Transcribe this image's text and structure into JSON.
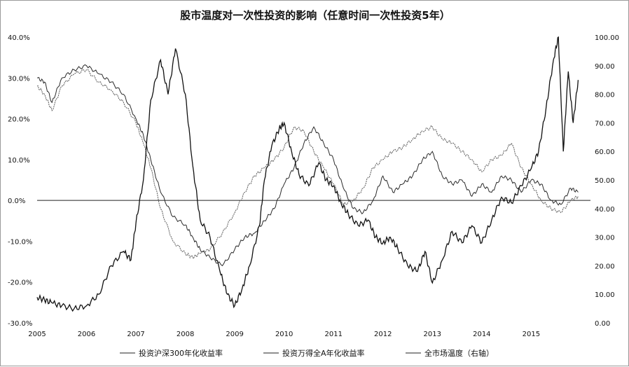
{
  "chart_data": {
    "type": "line",
    "title": "股市温度对一次性投资的影响（任意时间一次性投资5年）",
    "x_ticks": [
      "2005",
      "2006",
      "2007",
      "2008",
      "2009",
      "2010",
      "2011",
      "2012",
      "2013",
      "2014",
      "2015"
    ],
    "left_ticks": [
      "40.0%",
      "30.0%",
      "20.0%",
      "10.0%",
      "0.0%",
      "-10.0%",
      "-20.0%",
      "-30.0%"
    ],
    "right_ticks": [
      "100.00",
      "90.00",
      "80.00",
      "70.00",
      "60.00",
      "50.00",
      "40.00",
      "30.00",
      "20.00",
      "10.00",
      "0.00"
    ],
    "left_ylim": [
      -30,
      40
    ],
    "right_ylim": [
      0,
      100
    ],
    "xlim": [
      2005.0,
      2016.2
    ],
    "grid": false,
    "legend_position": "bottom",
    "series": [
      {
        "name": "投资沪深300年化收益率",
        "axis": "left",
        "color": "#2a2a2a",
        "x": [
          2005.0,
          2005.15,
          2005.3,
          2005.5,
          2005.75,
          2006.0,
          2006.25,
          2006.5,
          2006.75,
          2007.0,
          2007.15,
          2007.3,
          2007.5,
          2007.75,
          2008.0,
          2008.15,
          2008.3,
          2008.5,
          2008.75,
          2009.0,
          2009.2,
          2009.4,
          2009.6,
          2009.8,
          2010.0,
          2010.2,
          2010.4,
          2010.6,
          2010.8,
          2011.0,
          2011.2,
          2011.4,
          2011.6,
          2011.8,
          2012.0,
          2012.2,
          2012.4,
          2012.6,
          2012.8,
          2013.0,
          2013.2,
          2013.4,
          2013.6,
          2013.8,
          2014.0,
          2014.2,
          2014.4,
          2014.6,
          2014.8,
          2015.0,
          2015.2,
          2015.4,
          2015.6,
          2015.8,
          2015.95
        ],
        "y": [
          30,
          29,
          24,
          30,
          32,
          33,
          31,
          29,
          26,
          20,
          16,
          10,
          2,
          -4,
          -6,
          -9,
          -12,
          -14,
          -16,
          -12,
          -9,
          -8,
          -5,
          -2,
          4,
          8,
          14,
          18,
          14,
          10,
          3,
          -2,
          -3,
          0,
          6,
          2,
          4,
          6,
          10,
          12,
          6,
          4,
          5,
          1,
          4,
          2,
          6,
          5,
          2,
          5,
          4,
          0,
          -1,
          3,
          2
        ]
      },
      {
        "name": "投资万得全A年化收益率",
        "axis": "left",
        "color": "#5a5a5a",
        "x": [
          2005.0,
          2005.15,
          2005.3,
          2005.5,
          2005.75,
          2006.0,
          2006.25,
          2006.5,
          2006.75,
          2007.0,
          2007.15,
          2007.3,
          2007.5,
          2007.75,
          2008.0,
          2008.15,
          2008.3,
          2008.5,
          2008.75,
          2009.0,
          2009.2,
          2009.4,
          2009.6,
          2009.8,
          2010.0,
          2010.2,
          2010.4,
          2010.6,
          2010.8,
          2011.0,
          2011.2,
          2011.4,
          2011.6,
          2011.8,
          2012.0,
          2012.2,
          2012.4,
          2012.6,
          2012.8,
          2013.0,
          2013.2,
          2013.4,
          2013.6,
          2013.8,
          2014.0,
          2014.2,
          2014.4,
          2014.6,
          2014.8,
          2015.0,
          2015.2,
          2015.4,
          2015.6,
          2015.8,
          2015.95
        ],
        "y": [
          28,
          26,
          22,
          28,
          31,
          32,
          29,
          27,
          24,
          19,
          14,
          8,
          -2,
          -10,
          -13,
          -14,
          -13,
          -12,
          -8,
          -3,
          2,
          6,
          8,
          10,
          13,
          18,
          17,
          12,
          8,
          4,
          -1,
          0,
          3,
          8,
          10,
          12,
          13,
          15,
          17,
          18,
          15,
          14,
          12,
          10,
          7,
          10,
          11,
          14,
          8,
          4,
          0,
          -2,
          -3,
          0,
          1
        ]
      },
      {
        "name": "全市场温度（右轴）",
        "axis": "right",
        "color": "#111111",
        "x": [
          2005.0,
          2005.15,
          2005.3,
          2005.5,
          2005.75,
          2006.0,
          2006.25,
          2006.5,
          2006.75,
          2006.9,
          2007.0,
          2007.15,
          2007.3,
          2007.5,
          2007.65,
          2007.8,
          2008.0,
          2008.15,
          2008.3,
          2008.5,
          2008.7,
          2008.85,
          2009.0,
          2009.15,
          2009.3,
          2009.5,
          2009.6,
          2009.75,
          2009.9,
          2010.0,
          2010.15,
          2010.3,
          2010.5,
          2010.7,
          2010.85,
          2011.0,
          2011.15,
          2011.3,
          2011.5,
          2011.7,
          2011.85,
          2012.0,
          2012.15,
          2012.3,
          2012.5,
          2012.7,
          2012.85,
          2013.0,
          2013.2,
          2013.4,
          2013.6,
          2013.8,
          2014.0,
          2014.2,
          2014.4,
          2014.6,
          2014.8,
          2015.0,
          2015.15,
          2015.3,
          2015.45,
          2015.55,
          2015.65,
          2015.75,
          2015.85,
          2015.95
        ],
        "y": [
          9,
          8,
          7,
          6,
          5,
          6,
          10,
          20,
          25,
          22,
          35,
          50,
          78,
          92,
          80,
          96,
          80,
          55,
          36,
          30,
          18,
          10,
          6,
          12,
          20,
          34,
          50,
          62,
          68,
          70,
          60,
          52,
          48,
          56,
          50,
          48,
          42,
          38,
          34,
          36,
          30,
          28,
          30,
          26,
          20,
          18,
          25,
          14,
          22,
          32,
          28,
          34,
          28,
          36,
          44,
          42,
          48,
          54,
          60,
          75,
          92,
          100,
          60,
          88,
          70,
          85
        ]
      }
    ]
  }
}
